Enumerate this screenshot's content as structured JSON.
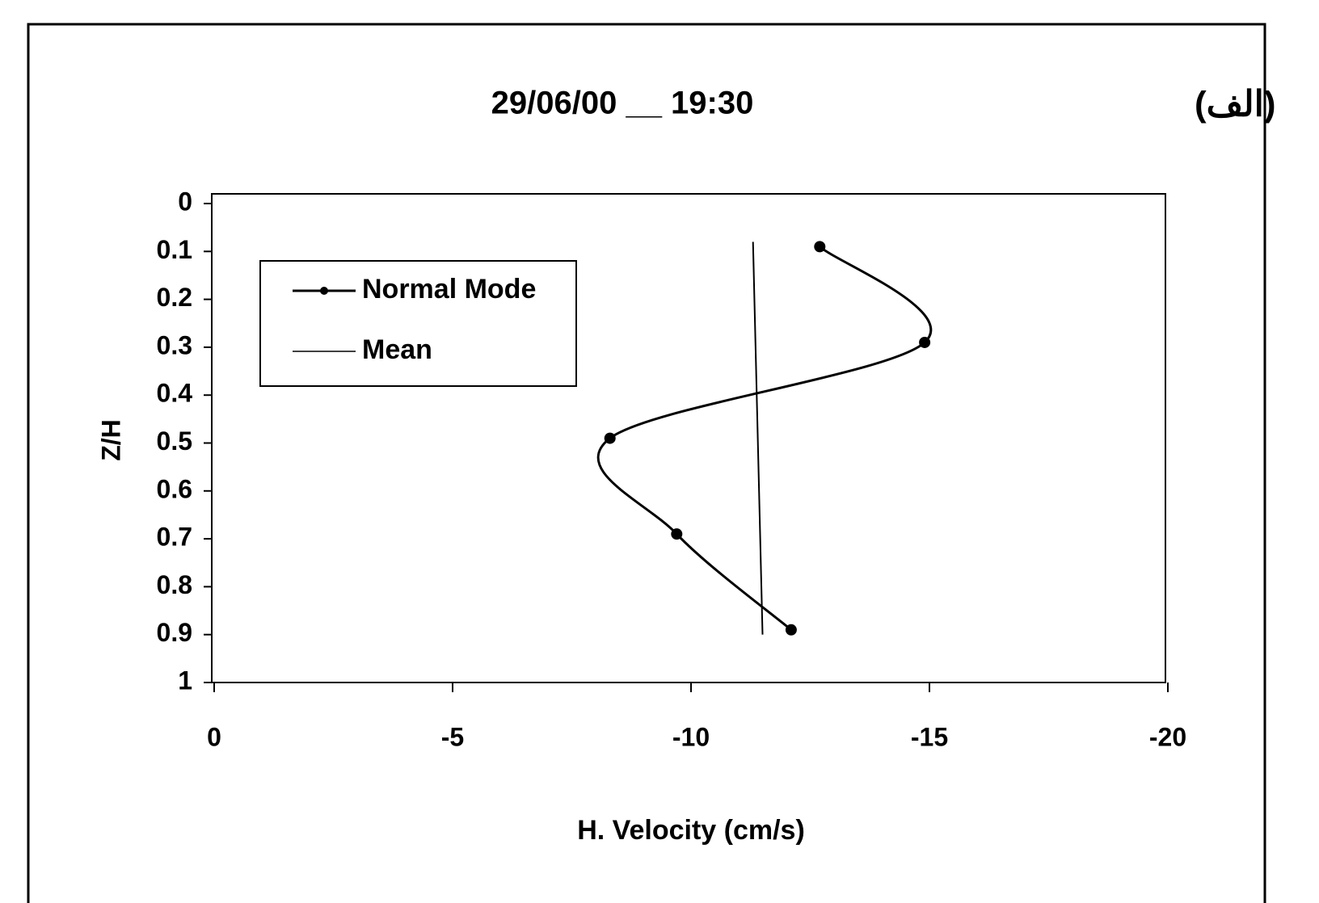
{
  "chart_data": {
    "type": "line",
    "title": "29/06/00 __ 19:30",
    "annotations": [
      "(الف)"
    ],
    "xlabel": "H. Velocity (cm/s)",
    "ylabel": "Z/H",
    "xlim": [
      0,
      -20
    ],
    "xticks": [
      0,
      -5,
      -10,
      -15,
      -20
    ],
    "ylim": [
      0,
      1
    ],
    "yticks": [
      0,
      0.1,
      0.2,
      0.3,
      0.4,
      0.5,
      0.6,
      0.7,
      0.8,
      0.9,
      1
    ],
    "y_inverted": true,
    "legend": "upper left",
    "series": [
      {
        "name": "Normal Mode",
        "color": "#000000",
        "marker": true,
        "smooth": true,
        "x": [
          -12.7,
          -14.9,
          -8.3,
          -9.7,
          -12.1
        ],
        "values": [
          0.09,
          0.29,
          0.49,
          0.69,
          0.89
        ]
      },
      {
        "name": "Mean",
        "color": "#000000",
        "marker": false,
        "smooth": false,
        "x": [
          -11.3,
          -11.5
        ],
        "values": [
          0.08,
          0.9
        ]
      }
    ]
  }
}
